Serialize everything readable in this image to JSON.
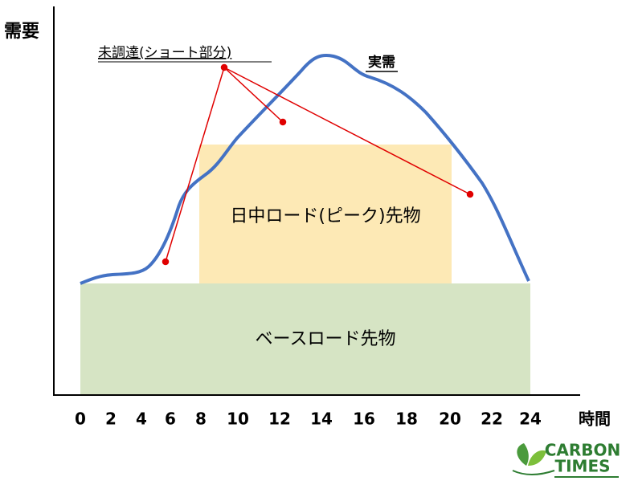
{
  "axis": {
    "y_label": "需要",
    "x_label": "時間",
    "x_ticks": [
      "0",
      "2",
      "4",
      "6",
      "8",
      "10",
      "12",
      "14",
      "16",
      "18",
      "20",
      "22",
      "24"
    ]
  },
  "annotations": {
    "shortfall": "未調達(ショート部分)",
    "actual": "実需"
  },
  "blocks": {
    "peak": "日中ロード(ピーク)先物",
    "base": "ベースロード先物"
  },
  "logo": {
    "line1": "CARBON",
    "line2": "TIMES"
  }
}
